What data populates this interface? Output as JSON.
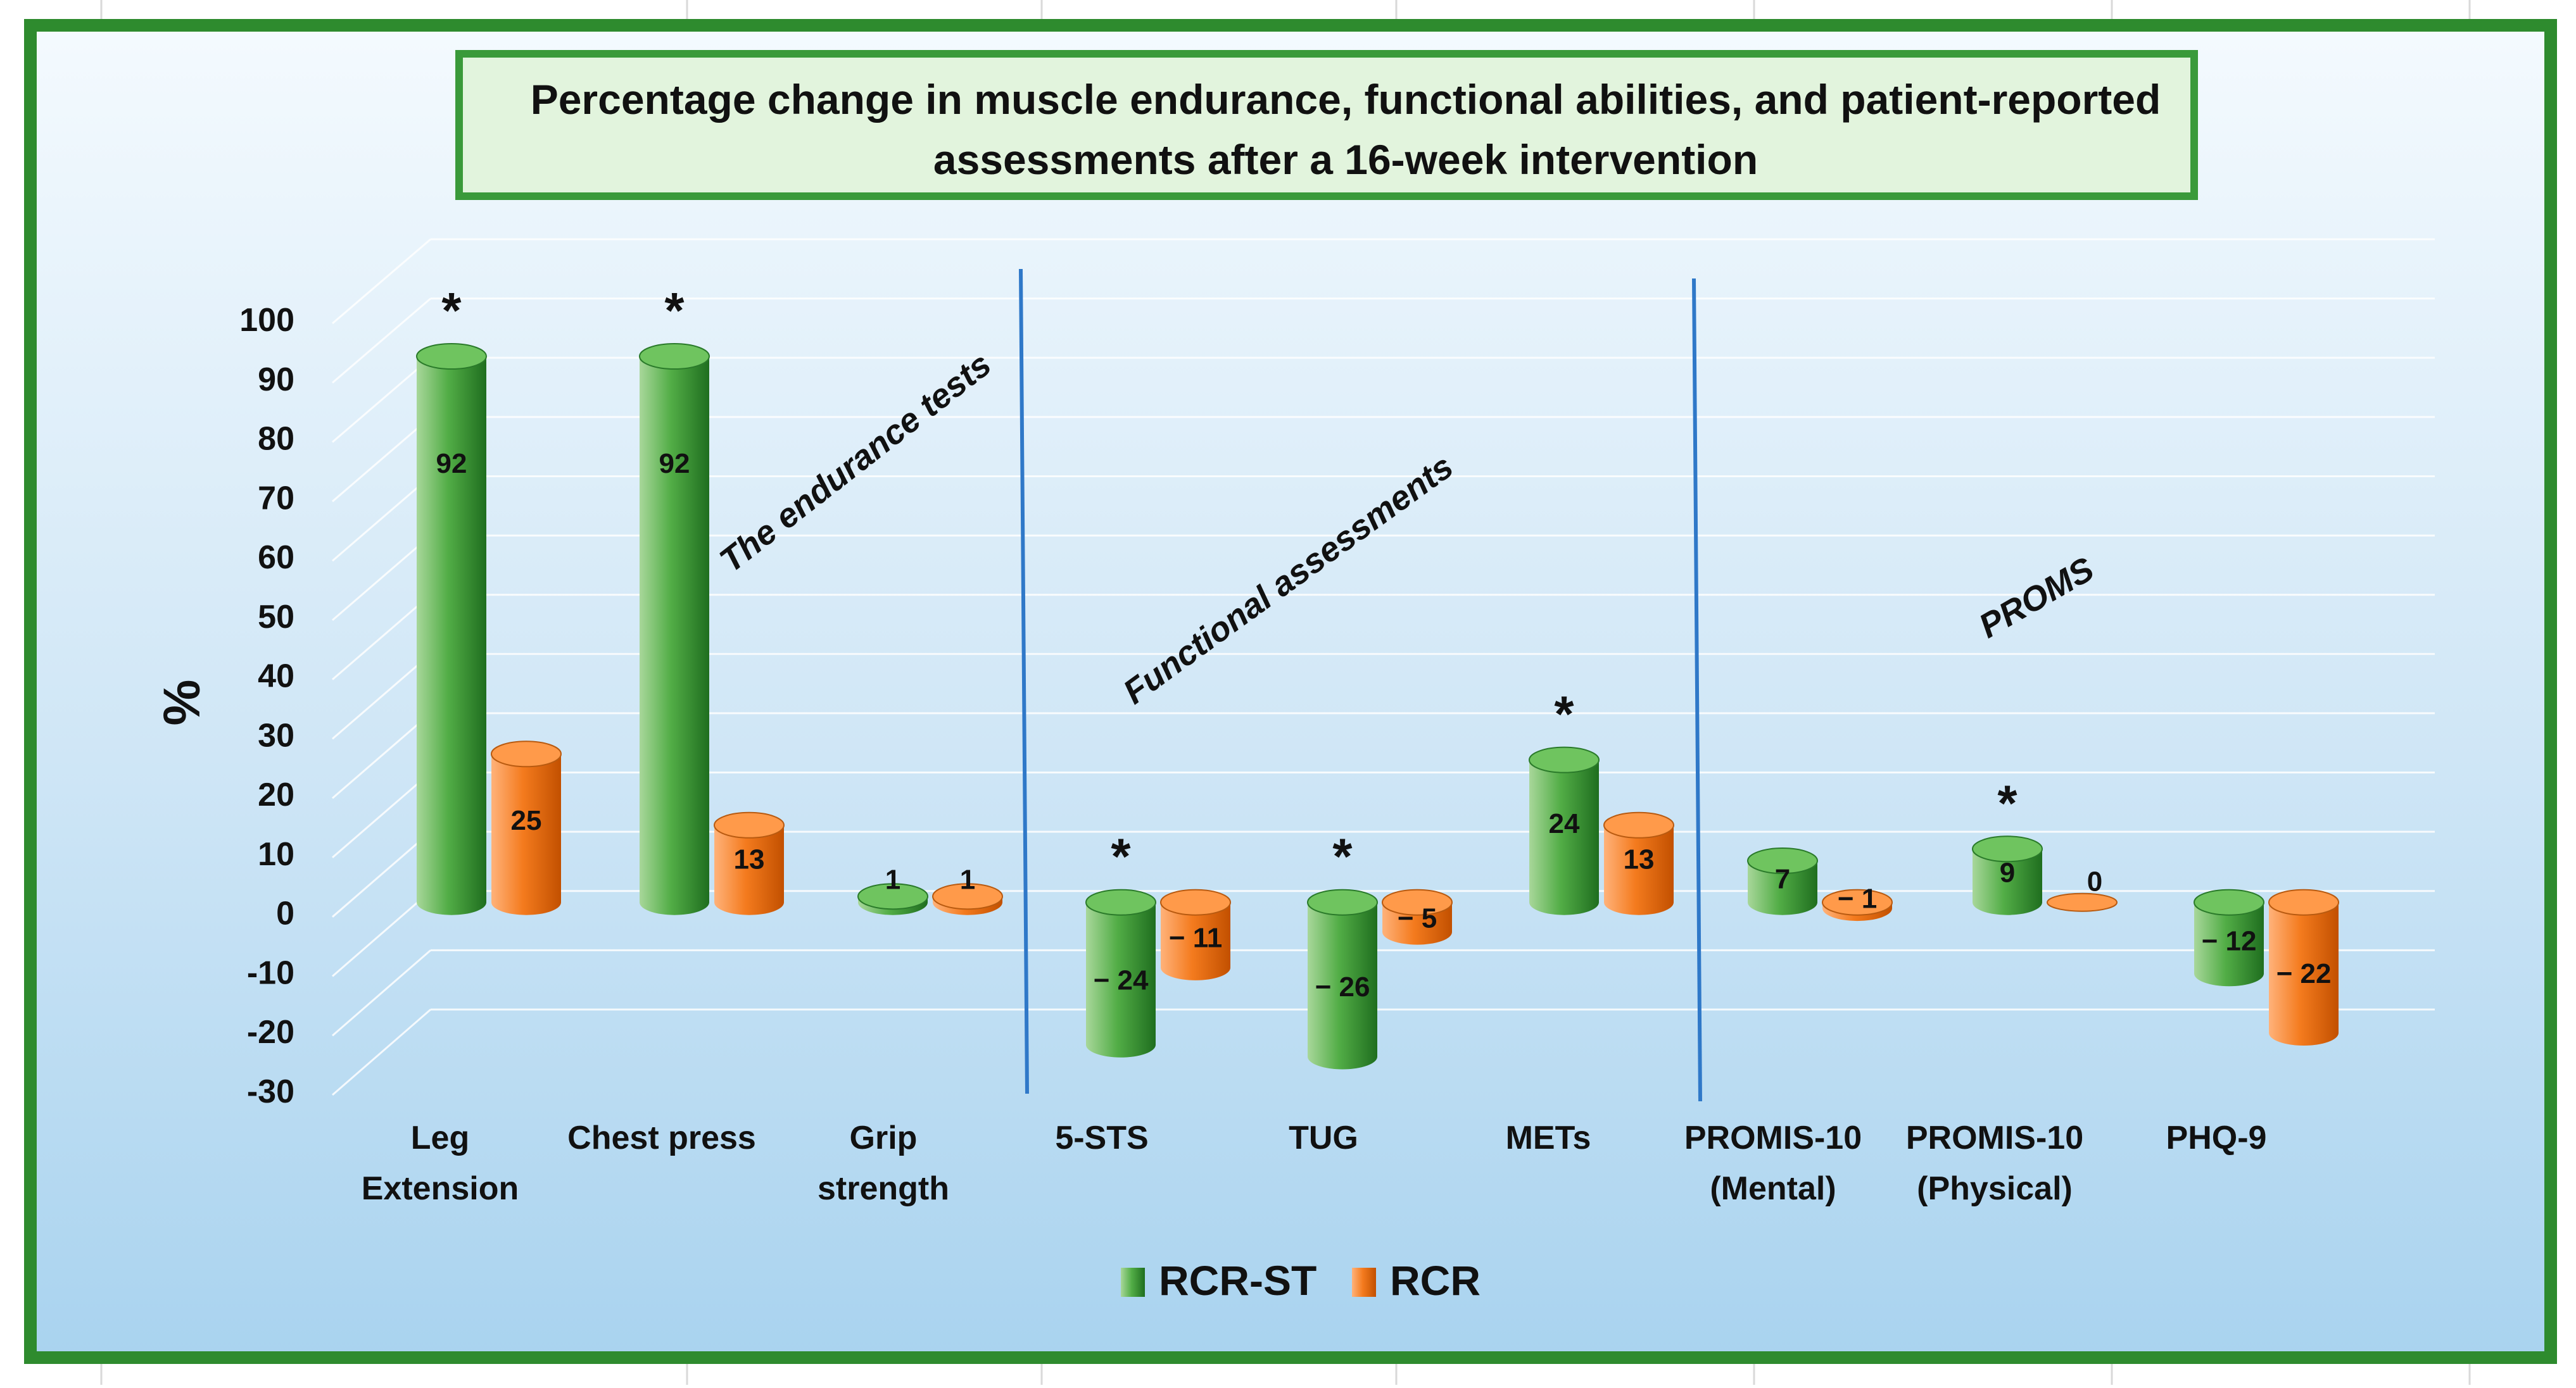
{
  "chart_data": {
    "type": "bar",
    "title": "Percentage change in muscle endurance, functional abilities, and patient-reported assessments after a 16-week intervention",
    "title_lines": [
      "Percentage change in muscle endurance, functional abilities, and patient-reported",
      "assessments after a 16-week intervention"
    ],
    "ylabel": "%",
    "xlabel": "",
    "ylim": [
      -30,
      100
    ],
    "yticks": [
      100,
      90,
      80,
      70,
      60,
      50,
      40,
      30,
      20,
      10,
      0,
      -10,
      -20,
      -30
    ],
    "categories": [
      [
        "Leg",
        "Extension"
      ],
      [
        "Chest press"
      ],
      [
        "Grip",
        "strength"
      ],
      [
        "5-STS"
      ],
      [
        "TUG"
      ],
      [
        "METs"
      ],
      [
        "PROMIS-10",
        "(Mental)"
      ],
      [
        "PROMIS-10",
        "(Physical)"
      ],
      [
        "PHQ-9"
      ]
    ],
    "series": [
      {
        "name": "RCR-ST",
        "values": [
          92,
          92,
          1,
          -24,
          -26,
          24,
          7,
          9,
          -12
        ],
        "labels": [
          "92",
          "92",
          "1",
          "− 24",
          "− 26",
          "24",
          "7",
          "9",
          "− 12"
        ]
      },
      {
        "name": "RCR",
        "values": [
          25,
          13,
          1,
          -11,
          -5,
          13,
          -1,
          0,
          -22
        ],
        "labels": [
          "25",
          "13",
          "1",
          "− 11",
          "− 5",
          "13",
          "− 1",
          "0",
          "− 22"
        ]
      }
    ],
    "significance_marker": "*",
    "significant_categories": [
      0,
      1,
      3,
      4,
      5,
      7
    ],
    "group_labels": [
      "The endurance tests",
      "Functional assessments",
      "PROMS"
    ],
    "legend": {
      "position": "bottom",
      "entries": [
        "RCR-ST",
        "RCR"
      ]
    },
    "colors": {
      "rcr_st": "#3a9a3a",
      "rcr": "#f07a1a",
      "frame": "#2e8b2e",
      "title_bg": "#e2f4dd",
      "divider": "#2f78c8"
    },
    "grid": true
  }
}
